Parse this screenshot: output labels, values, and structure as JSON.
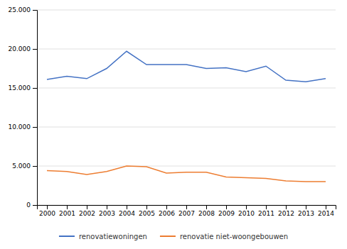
{
  "chart_data": {
    "type": "line",
    "x": [
      2000,
      2001,
      2002,
      2003,
      2004,
      2005,
      2006,
      2007,
      2008,
      2009,
      2010,
      2011,
      2012,
      2013,
      2014
    ],
    "series": [
      {
        "name": "renovatiewoningen",
        "color": "#4472C4",
        "values": [
          16100,
          16500,
          16200,
          17500,
          19700,
          18000,
          18000,
          18000,
          17500,
          17600,
          17100,
          17800,
          16000,
          15800,
          16200
        ]
      },
      {
        "name": "renovatie niet-woongebouwen",
        "color": "#ED7D31",
        "values": [
          4400,
          4300,
          3900,
          4300,
          5000,
          4900,
          4100,
          4200,
          4200,
          3600,
          3500,
          3400,
          3100,
          3000,
          3000
        ]
      }
    ],
    "xlim": [
      1999.5,
      2014.5
    ],
    "xticks": [
      2000,
      2001,
      2002,
      2003,
      2004,
      2005,
      2006,
      2007,
      2008,
      2009,
      2010,
      2011,
      2012,
      2013,
      2014
    ],
    "ylim": [
      0,
      25000
    ],
    "yticks": [
      0,
      {
        "value": 5000,
        "label": "5.000"
      },
      {
        "value": 10000,
        "label": "10.000"
      },
      {
        "value": 15000,
        "label": "15.000"
      },
      {
        "value": 20000,
        "label": "20.000"
      },
      {
        "value": 25000,
        "label": "25.000"
      }
    ],
    "grid": true,
    "legend": "bottom"
  }
}
